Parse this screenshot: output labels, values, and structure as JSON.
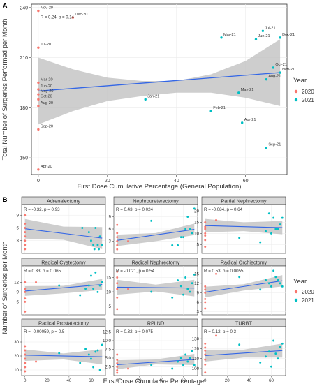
{
  "colors": {
    "y2020": "#F8766D",
    "y2021": "#00BFC4",
    "fit": "#3366E6",
    "band": "#BDBDBD",
    "strip": "#D9D9D9",
    "panel_border": "#333333"
  },
  "legend": {
    "title": "Year",
    "items": [
      "2020",
      "2021"
    ]
  },
  "chart_data": [
    {
      "panel_label": "A",
      "type": "scatter",
      "xlabel": "First Dose Cumulative Percentage (General Population)",
      "ylabel": "Total Number of Surgeries Performed per Month",
      "xlim": [
        -2,
        72
      ],
      "ylim": [
        140,
        242
      ],
      "xticks": [
        0,
        20,
        40,
        60
      ],
      "yticks": [
        150,
        180,
        210,
        240
      ],
      "annotation": "R = 0.24, p = 0.14",
      "fit": {
        "x0": 0,
        "y0": 190,
        "x1": 70,
        "y1": 201
      },
      "band": {
        "x": [
          0,
          10,
          20,
          30,
          40,
          50,
          60,
          70
        ],
        "lower": [
          170,
          178,
          184,
          187,
          189,
          189,
          186,
          181
        ],
        "upper": [
          210,
          203,
          198,
          196,
          196,
          200,
          208,
          221
        ]
      },
      "points": [
        {
          "label": "Nov-20",
          "x": 0,
          "y": 238,
          "year": "2020"
        },
        {
          "label": "Dec-20",
          "x": 10,
          "y": 234,
          "year": "2020"
        },
        {
          "label": "Jul-20",
          "x": 0,
          "y": 216,
          "year": "2020"
        },
        {
          "label": "Mar-20",
          "x": 0,
          "y": 195,
          "year": "2020"
        },
        {
          "label": "Jun-20",
          "x": 0,
          "y": 191,
          "year": "2020"
        },
        {
          "label": "May-20",
          "x": 0,
          "y": 188,
          "year": "2020"
        },
        {
          "label": "Oct-20",
          "x": 0,
          "y": 185,
          "year": "2020"
        },
        {
          "label": "Aug-20",
          "x": 0,
          "y": 181,
          "year": "2020"
        },
        {
          "label": "Sep-20",
          "x": 0,
          "y": 167,
          "year": "2020"
        },
        {
          "label": "Apr-20",
          "x": 0,
          "y": 143,
          "year": "2020"
        },
        {
          "label": "Jan-21",
          "x": 31,
          "y": 185,
          "year": "2021"
        },
        {
          "label": "Feb-21",
          "x": 50,
          "y": 178,
          "year": "2021"
        },
        {
          "label": "Mar-21",
          "x": 53,
          "y": 222,
          "year": "2021"
        },
        {
          "label": "Apr-21",
          "x": 59,
          "y": 171,
          "year": "2021"
        },
        {
          "label": "May-21",
          "x": 58,
          "y": 189,
          "year": "2021"
        },
        {
          "label": "Jun-21",
          "x": 63,
          "y": 221,
          "year": "2021"
        },
        {
          "label": "Jul-21",
          "x": 65,
          "y": 226,
          "year": "2021"
        },
        {
          "label": "Aug-21",
          "x": 66,
          "y": 197,
          "year": "2021"
        },
        {
          "label": "Sep-21",
          "x": 66,
          "y": 156,
          "year": "2021"
        },
        {
          "label": "Oct-21",
          "x": 68,
          "y": 204,
          "year": "2021"
        },
        {
          "label": "Nov-21",
          "x": 70,
          "y": 201,
          "year": "2021"
        },
        {
          "label": "Dec-21",
          "x": 70,
          "y": 222,
          "year": "2021"
        }
      ]
    },
    {
      "panel_label": "B",
      "type": "scatter",
      "xlabel": "First Dose Cumulative Percentage",
      "ylabel": "Number of Surgeries per Month",
      "xlim": [
        -3,
        73
      ],
      "xticks": [
        0,
        20,
        40,
        60
      ],
      "facets": [
        {
          "title": "Adrenalectomy",
          "annotation": "R = -0.32, p = 0.93",
          "ylim": [
            0,
            11.5
          ],
          "yticks": [
            3,
            6,
            9
          ],
          "fit": [
            0,
            5.8,
            70,
            3.6
          ],
          "band_lower": [
            3.5,
            3.2,
            1.0
          ],
          "band_upper": [
            8.1,
            6.3,
            6.2
          ],
          "points": [
            [
              0,
              9
            ],
            [
              0,
              7
            ],
            [
              0,
              6
            ],
            [
              0,
              5
            ],
            [
              0,
              4
            ],
            [
              0,
              3
            ],
            [
              0,
              2
            ],
            [
              0,
              1
            ],
            [
              52,
              6
            ],
            [
              58,
              5
            ],
            [
              60,
              3
            ],
            [
              62,
              2
            ],
            [
              63,
              1
            ],
            [
              64,
              6
            ],
            [
              66,
              2
            ],
            [
              67,
              1
            ],
            [
              68,
              4
            ],
            [
              70,
              2
            ]
          ]
        },
        {
          "title": "Nephroureterectomy",
          "annotation": "R = 0.43, p = 0.024",
          "ylim": [
            0,
            12
          ],
          "yticks": [
            3,
            6,
            9
          ],
          "fit": [
            0,
            3.2,
            70,
            5.9
          ],
          "band_lower": [
            1.8,
            3.0,
            4.5
          ],
          "band_upper": [
            4.6,
            5.0,
            7.3
          ],
          "points": [
            [
              0,
              1
            ],
            [
              0,
              2
            ],
            [
              0,
              3
            ],
            [
              0,
              4
            ],
            [
              0,
              5
            ],
            [
              0,
              7
            ],
            [
              10,
              3
            ],
            [
              31,
              8
            ],
            [
              50,
              2
            ],
            [
              55,
              2
            ],
            [
              58,
              4
            ],
            [
              60,
              4
            ],
            [
              62,
              6
            ],
            [
              64,
              9
            ],
            [
              66,
              6
            ],
            [
              68,
              5
            ],
            [
              70,
              11
            ]
          ]
        },
        {
          "title": "Partial Nephrectomy",
          "annotation": "R = -0.084, p = 0.64",
          "ylim": [
            1,
            23
          ],
          "yticks": [
            5,
            10,
            15,
            20
          ],
          "fit": [
            0,
            13.5,
            70,
            12.6
          ],
          "band_lower": [
            10.5,
            11.0,
            9.6
          ],
          "band_upper": [
            16.5,
            15.0,
            15.6
          ],
          "points": [
            [
              0,
              4
            ],
            [
              0,
              7
            ],
            [
              0,
              9
            ],
            [
              0,
              10
            ],
            [
              0,
              12
            ],
            [
              0,
              13
            ],
            [
              0,
              15
            ],
            [
              10,
              16
            ],
            [
              31,
              8
            ],
            [
              50,
              6
            ],
            [
              55,
              11
            ],
            [
              58,
              19
            ],
            [
              60,
              10
            ],
            [
              62,
              17
            ],
            [
              64,
              12
            ],
            [
              66,
              12
            ],
            [
              68,
              14
            ],
            [
              70,
              17
            ]
          ]
        },
        {
          "title": "Radical Cystectomy",
          "annotation": "R = 0.33, p = 0.065",
          "ylim": [
            2,
            17
          ],
          "yticks": [
            6,
            9,
            12
          ],
          "fit": [
            0,
            9.3,
            70,
            11.3
          ],
          "band_lower": [
            7.8,
            8.6,
            9.6
          ],
          "band_upper": [
            10.8,
            10.9,
            13.0
          ],
          "points": [
            [
              0,
              3
            ],
            [
              0,
              6
            ],
            [
              0,
              7
            ],
            [
              0,
              9
            ],
            [
              0,
              10
            ],
            [
              0,
              12
            ],
            [
              10,
              12
            ],
            [
              31,
              11
            ],
            [
              50,
              8
            ],
            [
              55,
              10
            ],
            [
              58,
              11
            ],
            [
              60,
              14
            ],
            [
              62,
              10
            ],
            [
              64,
              15
            ],
            [
              66,
              9
            ],
            [
              68,
              11
            ],
            [
              70,
              12
            ]
          ]
        },
        {
          "title": "Radical Nephrectomy",
          "annotation": "R = -0.021, p = 0.54",
          "ylim": [
            2,
            19
          ],
          "yticks": [
            5,
            10,
            15
          ],
          "fit": [
            0,
            11.6,
            70,
            11.3
          ],
          "band_lower": [
            9.0,
            10.1,
            8.4
          ],
          "band_upper": [
            14.2,
            12.5,
            14.2
          ],
          "points": [
            [
              0,
              4
            ],
            [
              0,
              8
            ],
            [
              0,
              11
            ],
            [
              0,
              13
            ],
            [
              0,
              15
            ],
            [
              0,
              17
            ],
            [
              10,
              11
            ],
            [
              31,
              10
            ],
            [
              50,
              8
            ],
            [
              55,
              14
            ],
            [
              58,
              12
            ],
            [
              60,
              9
            ],
            [
              62,
              15
            ],
            [
              64,
              11
            ],
            [
              66,
              10
            ],
            [
              68,
              13
            ],
            [
              70,
              16
            ]
          ]
        },
        {
          "title": "Radical Orchiectomy",
          "annotation": "R = 0.53, p = 0.0055",
          "ylim": [
            2,
            17.5
          ],
          "yticks": [
            3,
            6,
            9,
            12,
            15
          ],
          "fit": [
            0,
            9.2,
            70,
            12.8
          ],
          "band_lower": [
            7.5,
            9.7,
            11.0
          ],
          "band_upper": [
            10.9,
            11.7,
            14.6
          ],
          "points": [
            [
              0,
              4
            ],
            [
              0,
              6
            ],
            [
              0,
              7
            ],
            [
              0,
              9
            ],
            [
              0,
              10
            ],
            [
              0,
              11
            ],
            [
              10,
              15
            ],
            [
              31,
              14
            ],
            [
              50,
              10
            ],
            [
              55,
              13
            ],
            [
              58,
              12
            ],
            [
              60,
              11
            ],
            [
              62,
              16
            ],
            [
              64,
              14
            ],
            [
              66,
              13
            ],
            [
              68,
              12
            ],
            [
              70,
              11
            ]
          ]
        },
        {
          "title": "Radical Prostatectomy",
          "annotation": "R = -0.00059, p = 0.5",
          "ylim": [
            6,
            41
          ],
          "yticks": [
            10,
            20,
            30
          ],
          "fit": [
            0,
            20.6,
            70,
            19.4
          ],
          "band_lower": [
            16.5,
            17.5,
            14.0
          ],
          "band_upper": [
            24.7,
            21.8,
            24.8
          ],
          "points": [
            [
              0,
              9
            ],
            [
              0,
              12
            ],
            [
              0,
              15
            ],
            [
              0,
              18
            ],
            [
              0,
              21
            ],
            [
              0,
              24
            ],
            [
              0,
              27
            ],
            [
              10,
              16
            ],
            [
              31,
              22
            ],
            [
              50,
              15
            ],
            [
              55,
              25
            ],
            [
              58,
              21
            ],
            [
              60,
              18
            ],
            [
              62,
              12
            ],
            [
              64,
              23
            ],
            [
              66,
              24
            ],
            [
              68,
              10
            ],
            [
              70,
              28
            ]
          ]
        },
        {
          "title": "RPLND",
          "annotation": "R = 0.32, p = 0.075",
          "ylim": [
            0,
            14
          ],
          "yticks": [
            2.5,
            5.0,
            7.5,
            10.0,
            12.5
          ],
          "fit": [
            0,
            3.1,
            70,
            4.6
          ],
          "band_lower": [
            1.8,
            3.2,
            3.0
          ],
          "band_upper": [
            4.4,
            4.6,
            6.2
          ],
          "points": [
            [
              0,
              0.8
            ],
            [
              0,
              1.5
            ],
            [
              0,
              2.5
            ],
            [
              0,
              3.5
            ],
            [
              0,
              4.5
            ],
            [
              0,
              6
            ],
            [
              10,
              2
            ],
            [
              31,
              3
            ],
            [
              50,
              2
            ],
            [
              55,
              4
            ],
            [
              58,
              5
            ],
            [
              60,
              3
            ],
            [
              62,
              6
            ],
            [
              64,
              4
            ],
            [
              66,
              5
            ],
            [
              68,
              7
            ],
            [
              70,
              3
            ]
          ]
        },
        {
          "title": "TURBT",
          "annotation": "R = 0.12, p = 0.3",
          "ylim": [
            93,
            142
          ],
          "yticks": [
            100,
            110,
            120,
            130
          ],
          "fit": [
            0,
            113,
            70,
            118
          ],
          "band_lower": [
            107,
            111,
            111
          ],
          "band_upper": [
            119,
            119,
            125
          ],
          "points": [
            [
              0,
              96
            ],
            [
              0,
              104
            ],
            [
              0,
              109
            ],
            [
              0,
              114
            ],
            [
              0,
              118
            ],
            [
              0,
              121
            ],
            [
              0,
              125
            ],
            [
              10,
              133
            ],
            [
              31,
              124
            ],
            [
              50,
              106
            ],
            [
              55,
              112
            ],
            [
              58,
              117
            ],
            [
              60,
              102
            ],
            [
              62,
              128
            ],
            [
              64,
              115
            ],
            [
              66,
              110
            ],
            [
              68,
              122
            ],
            [
              70,
              125
            ]
          ]
        }
      ]
    }
  ]
}
